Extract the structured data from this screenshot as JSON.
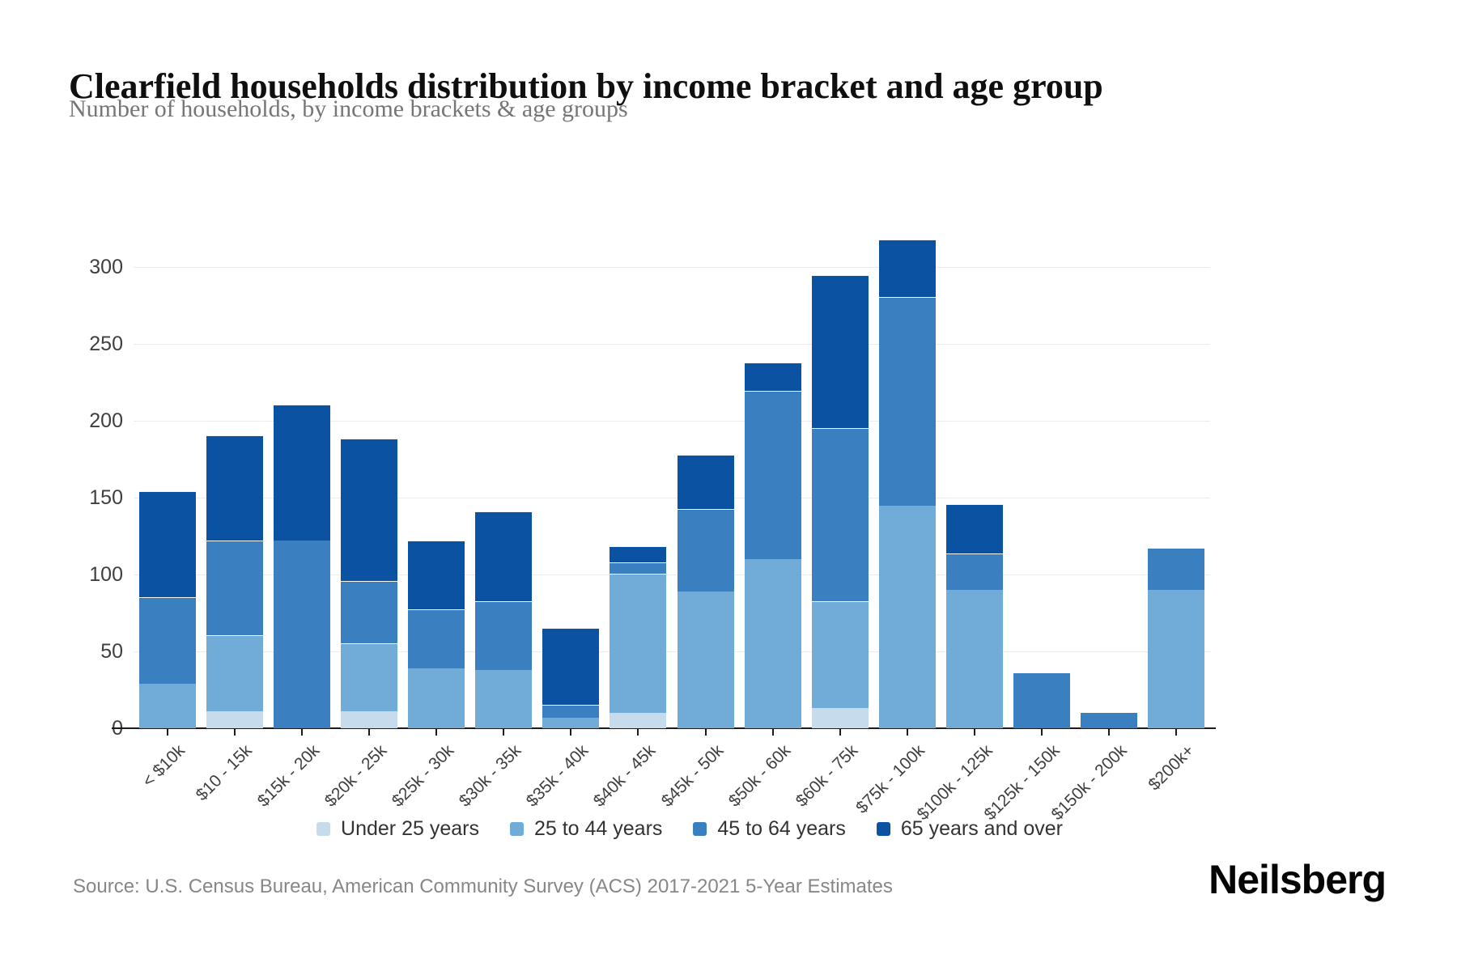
{
  "header": {
    "title": "Clearfield households distribution by income bracket and age group",
    "subtitle": "Number of households, by income brackets & age groups"
  },
  "chart_data": {
    "type": "bar",
    "stacked": true,
    "title": "Clearfield households distribution by income bracket and age group",
    "subtitle": "Number of households, by income brackets & age groups",
    "xlabel": "",
    "ylabel": "",
    "ylim": [
      0,
      300
    ],
    "yticks": [
      0,
      50,
      100,
      150,
      200,
      250,
      300
    ],
    "grid": true,
    "legend_position": "bottom",
    "categories": [
      "< $10k",
      "$10 - 15k",
      "$15k - 20k",
      "$20k - 25k",
      "$25k - 30k",
      "$30k - 35k",
      "$35k - 40k",
      "$40k - 45k",
      "$45k - 50k",
      "$50k - 60k",
      "$60k - 75k",
      "$75k - 100k",
      "$100k - 125k",
      "$125k - 150k",
      "$150k - 200k",
      "$200k+"
    ],
    "series": [
      {
        "name": "Under 25 years",
        "color": "#c6dbec",
        "values": [
          0,
          11,
          0,
          11,
          0,
          0,
          0,
          10,
          0,
          0,
          13,
          0,
          0,
          0,
          0,
          0
        ]
      },
      {
        "name": "25 to 44 years",
        "color": "#70acd7",
        "values": [
          29,
          49,
          0,
          44,
          39,
          38,
          7,
          90,
          89,
          110,
          69,
          145,
          90,
          0,
          0,
          90
        ]
      },
      {
        "name": "45 to 64 years",
        "color": "#3a80c1",
        "values": [
          56,
          61,
          122,
          40,
          38,
          44,
          8,
          7,
          53,
          109,
          112,
          135,
          23,
          36,
          10,
          27
        ]
      },
      {
        "name": "65 years and over",
        "color": "#0b53a2",
        "values": [
          68,
          68,
          88,
          92,
          44,
          58,
          49,
          10,
          35,
          18,
          99,
          37,
          32,
          0,
          0,
          0
        ]
      }
    ],
    "totals": [
      153,
      189,
      210,
      187,
      121,
      140,
      64,
      117,
      177,
      237,
      293,
      317,
      145,
      36,
      10,
      117
    ]
  },
  "footer": {
    "source": "Source: U.S. Census Bureau, American Community Survey (ACS) 2017-2021 5-Year Estimates",
    "brand": "Neilsberg"
  }
}
